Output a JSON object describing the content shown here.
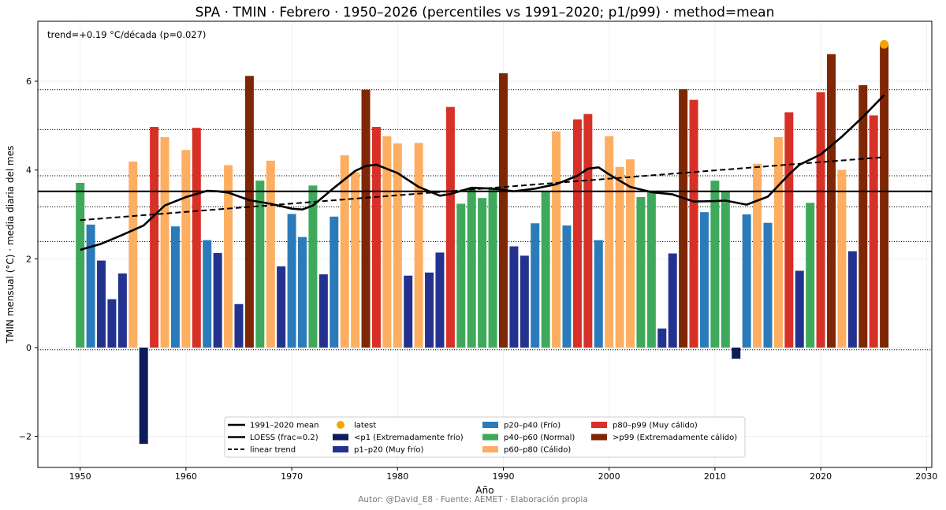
{
  "chart_data": {
    "type": "bar",
    "title": "SPA · TMIN · Febrero · 1950–2026 (percentiles vs 1991–2020; p1/p99) · method=mean",
    "xlabel": "Año",
    "ylabel": "TMIN mensual (°C) · media diaria del mes",
    "xlim": [
      1946,
      2030.5
    ],
    "ylim": [
      -2.7,
      7.35
    ],
    "x_ticks": [
      "1950",
      "1960",
      "1970",
      "1980",
      "1990",
      "2000",
      "2010",
      "2020",
      "2030"
    ],
    "y_ticks": [
      "−2",
      "0",
      "2",
      "4",
      "6"
    ],
    "annotation": "trend=+0.19 °C/década (p=0.027)",
    "credit": "Autor: @David_E8 · Fuente: AEMET · Elaboración propia",
    "baseline_mean": 3.52,
    "percentile_lines": [
      -0.05,
      2.39,
      3.17,
      3.87,
      4.91,
      5.81
    ],
    "colors": {
      "xlow": "#0d1d57",
      "vcold": "#24328f",
      "cold": "#2b7bba",
      "normal": "#3fa95b",
      "warm": "#fdae61",
      "vwarm": "#d73027",
      "xhigh": "#7f2704",
      "latest": "#f5a400"
    },
    "bars": [
      {
        "year": 1950,
        "value": 3.71,
        "cls": "normal"
      },
      {
        "year": 1951,
        "value": 2.77,
        "cls": "cold"
      },
      {
        "year": 1952,
        "value": 1.96,
        "cls": "vcold"
      },
      {
        "year": 1953,
        "value": 1.09,
        "cls": "vcold"
      },
      {
        "year": 1954,
        "value": 1.67,
        "cls": "vcold"
      },
      {
        "year": 1955,
        "value": 4.19,
        "cls": "warm"
      },
      {
        "year": 1956,
        "value": -2.17,
        "cls": "xlow"
      },
      {
        "year": 1957,
        "value": 4.97,
        "cls": "vwarm"
      },
      {
        "year": 1958,
        "value": 4.74,
        "cls": "warm"
      },
      {
        "year": 1959,
        "value": 2.73,
        "cls": "cold"
      },
      {
        "year": 1960,
        "value": 4.45,
        "cls": "warm"
      },
      {
        "year": 1961,
        "value": 4.95,
        "cls": "vwarm"
      },
      {
        "year": 1962,
        "value": 2.42,
        "cls": "cold"
      },
      {
        "year": 1963,
        "value": 2.13,
        "cls": "vcold"
      },
      {
        "year": 1964,
        "value": 4.11,
        "cls": "warm"
      },
      {
        "year": 1965,
        "value": 0.98,
        "cls": "vcold"
      },
      {
        "year": 1966,
        "value": 6.12,
        "cls": "xhigh"
      },
      {
        "year": 1967,
        "value": 3.76,
        "cls": "normal"
      },
      {
        "year": 1968,
        "value": 4.21,
        "cls": "warm"
      },
      {
        "year": 1969,
        "value": 1.83,
        "cls": "vcold"
      },
      {
        "year": 1970,
        "value": 3.01,
        "cls": "cold"
      },
      {
        "year": 1971,
        "value": 2.49,
        "cls": "cold"
      },
      {
        "year": 1972,
        "value": 3.65,
        "cls": "normal"
      },
      {
        "year": 1973,
        "value": 1.65,
        "cls": "vcold"
      },
      {
        "year": 1974,
        "value": 2.95,
        "cls": "cold"
      },
      {
        "year": 1975,
        "value": 4.33,
        "cls": "warm"
      },
      {
        "year": 1976,
        "value": 3.95,
        "cls": "warm"
      },
      {
        "year": 1977,
        "value": 5.81,
        "cls": "xhigh"
      },
      {
        "year": 1978,
        "value": 4.97,
        "cls": "vwarm"
      },
      {
        "year": 1979,
        "value": 4.76,
        "cls": "warm"
      },
      {
        "year": 1980,
        "value": 4.6,
        "cls": "warm"
      },
      {
        "year": 1981,
        "value": 1.62,
        "cls": "vcold"
      },
      {
        "year": 1982,
        "value": 4.61,
        "cls": "warm"
      },
      {
        "year": 1983,
        "value": 1.69,
        "cls": "vcold"
      },
      {
        "year": 1984,
        "value": 2.14,
        "cls": "vcold"
      },
      {
        "year": 1985,
        "value": 5.42,
        "cls": "vwarm"
      },
      {
        "year": 1986,
        "value": 3.24,
        "cls": "normal"
      },
      {
        "year": 1987,
        "value": 3.6,
        "cls": "normal"
      },
      {
        "year": 1988,
        "value": 3.37,
        "cls": "normal"
      },
      {
        "year": 1989,
        "value": 3.6,
        "cls": "normal"
      },
      {
        "year": 1990,
        "value": 6.18,
        "cls": "xhigh"
      },
      {
        "year": 1991,
        "value": 2.28,
        "cls": "vcold"
      },
      {
        "year": 1992,
        "value": 2.07,
        "cls": "vcold"
      },
      {
        "year": 1993,
        "value": 2.8,
        "cls": "cold"
      },
      {
        "year": 1994,
        "value": 3.53,
        "cls": "normal"
      },
      {
        "year": 1995,
        "value": 4.87,
        "cls": "warm"
      },
      {
        "year": 1996,
        "value": 2.75,
        "cls": "cold"
      },
      {
        "year": 1997,
        "value": 5.14,
        "cls": "vwarm"
      },
      {
        "year": 1998,
        "value": 5.26,
        "cls": "vwarm"
      },
      {
        "year": 1999,
        "value": 2.42,
        "cls": "cold"
      },
      {
        "year": 2000,
        "value": 4.76,
        "cls": "warm"
      },
      {
        "year": 2001,
        "value": 4.07,
        "cls": "warm"
      },
      {
        "year": 2002,
        "value": 4.24,
        "cls": "warm"
      },
      {
        "year": 2003,
        "value": 3.39,
        "cls": "normal"
      },
      {
        "year": 2004,
        "value": 3.51,
        "cls": "normal"
      },
      {
        "year": 2005,
        "value": 0.43,
        "cls": "vcold"
      },
      {
        "year": 2006,
        "value": 2.12,
        "cls": "vcold"
      },
      {
        "year": 2007,
        "value": 5.82,
        "cls": "xhigh"
      },
      {
        "year": 2008,
        "value": 5.58,
        "cls": "vwarm"
      },
      {
        "year": 2009,
        "value": 3.05,
        "cls": "cold"
      },
      {
        "year": 2010,
        "value": 3.76,
        "cls": "normal"
      },
      {
        "year": 2011,
        "value": 3.53,
        "cls": "normal"
      },
      {
        "year": 2012,
        "value": -0.25,
        "cls": "xlow"
      },
      {
        "year": 2013,
        "value": 3.0,
        "cls": "cold"
      },
      {
        "year": 2014,
        "value": 4.14,
        "cls": "warm"
      },
      {
        "year": 2015,
        "value": 2.81,
        "cls": "cold"
      },
      {
        "year": 2016,
        "value": 4.74,
        "cls": "warm"
      },
      {
        "year": 2017,
        "value": 5.3,
        "cls": "vwarm"
      },
      {
        "year": 2018,
        "value": 1.73,
        "cls": "vcold"
      },
      {
        "year": 2019,
        "value": 3.26,
        "cls": "normal"
      },
      {
        "year": 2020,
        "value": 5.75,
        "cls": "vwarm"
      },
      {
        "year": 2021,
        "value": 6.61,
        "cls": "xhigh"
      },
      {
        "year": 2022,
        "value": 4.0,
        "cls": "warm"
      },
      {
        "year": 2023,
        "value": 2.17,
        "cls": "vcold"
      },
      {
        "year": 2024,
        "value": 5.91,
        "cls": "xhigh"
      },
      {
        "year": 2025,
        "value": 5.23,
        "cls": "vwarm"
      },
      {
        "year": 2026,
        "value": 6.83,
        "cls": "xhigh"
      }
    ],
    "latest": {
      "year": 2026,
      "value": 6.83
    },
    "loess": {
      "name": "LOESS (frac=0.2)",
      "x": [
        1950,
        1952,
        1954,
        1956,
        1958,
        1960,
        1962,
        1963,
        1964,
        1966,
        1968,
        1970,
        1971,
        1972,
        1974,
        1976,
        1977,
        1978,
        1980,
        1982,
        1984,
        1985,
        1987,
        1989,
        1991,
        1993,
        1995,
        1997,
        1998,
        1999,
        2000,
        2002,
        2004,
        2006,
        2008,
        2010,
        2011,
        2013,
        2015,
        2017,
        2018,
        2020,
        2022,
        2024,
        2026
      ],
      "y": [
        2.2,
        2.34,
        2.54,
        2.75,
        3.2,
        3.39,
        3.53,
        3.52,
        3.49,
        3.32,
        3.24,
        3.13,
        3.11,
        3.2,
        3.6,
        3.98,
        4.09,
        4.12,
        3.93,
        3.62,
        3.42,
        3.46,
        3.6,
        3.58,
        3.52,
        3.58,
        3.68,
        3.87,
        4.03,
        4.06,
        3.9,
        3.62,
        3.5,
        3.45,
        3.29,
        3.3,
        3.31,
        3.22,
        3.4,
        3.9,
        4.12,
        4.35,
        4.75,
        5.2,
        5.69
      ]
    },
    "trend": {
      "name": "linear trend",
      "x": [
        1950,
        2026
      ],
      "y": [
        2.87,
        4.29
      ]
    },
    "legend": {
      "position": "bottom-center",
      "items": [
        {
          "label": "1991–2020 mean",
          "kind": "line-mean"
        },
        {
          "label": "LOESS (frac=0.2)",
          "kind": "line-loess"
        },
        {
          "label": "linear trend",
          "kind": "line-dash"
        },
        {
          "label": "latest",
          "kind": "dot",
          "cls": "latest"
        },
        {
          "label": "<p1 (Extremadamente frío)",
          "kind": "patch",
          "cls": "xlow"
        },
        {
          "label": "p1–p20 (Muy frío)",
          "kind": "patch",
          "cls": "vcold"
        },
        {
          "label": "p20–p40 (Frío)",
          "kind": "patch",
          "cls": "cold"
        },
        {
          "label": "p40–p60 (Normal)",
          "kind": "patch",
          "cls": "normal"
        },
        {
          "label": "p60–p80 (Cálido)",
          "kind": "patch",
          "cls": "warm"
        },
        {
          "label": "p80–p99 (Muy cálido)",
          "kind": "patch",
          "cls": "vwarm"
        },
        {
          "label": ">p99 (Extremadamente cálido)",
          "kind": "patch",
          "cls": "xhigh"
        }
      ]
    }
  }
}
